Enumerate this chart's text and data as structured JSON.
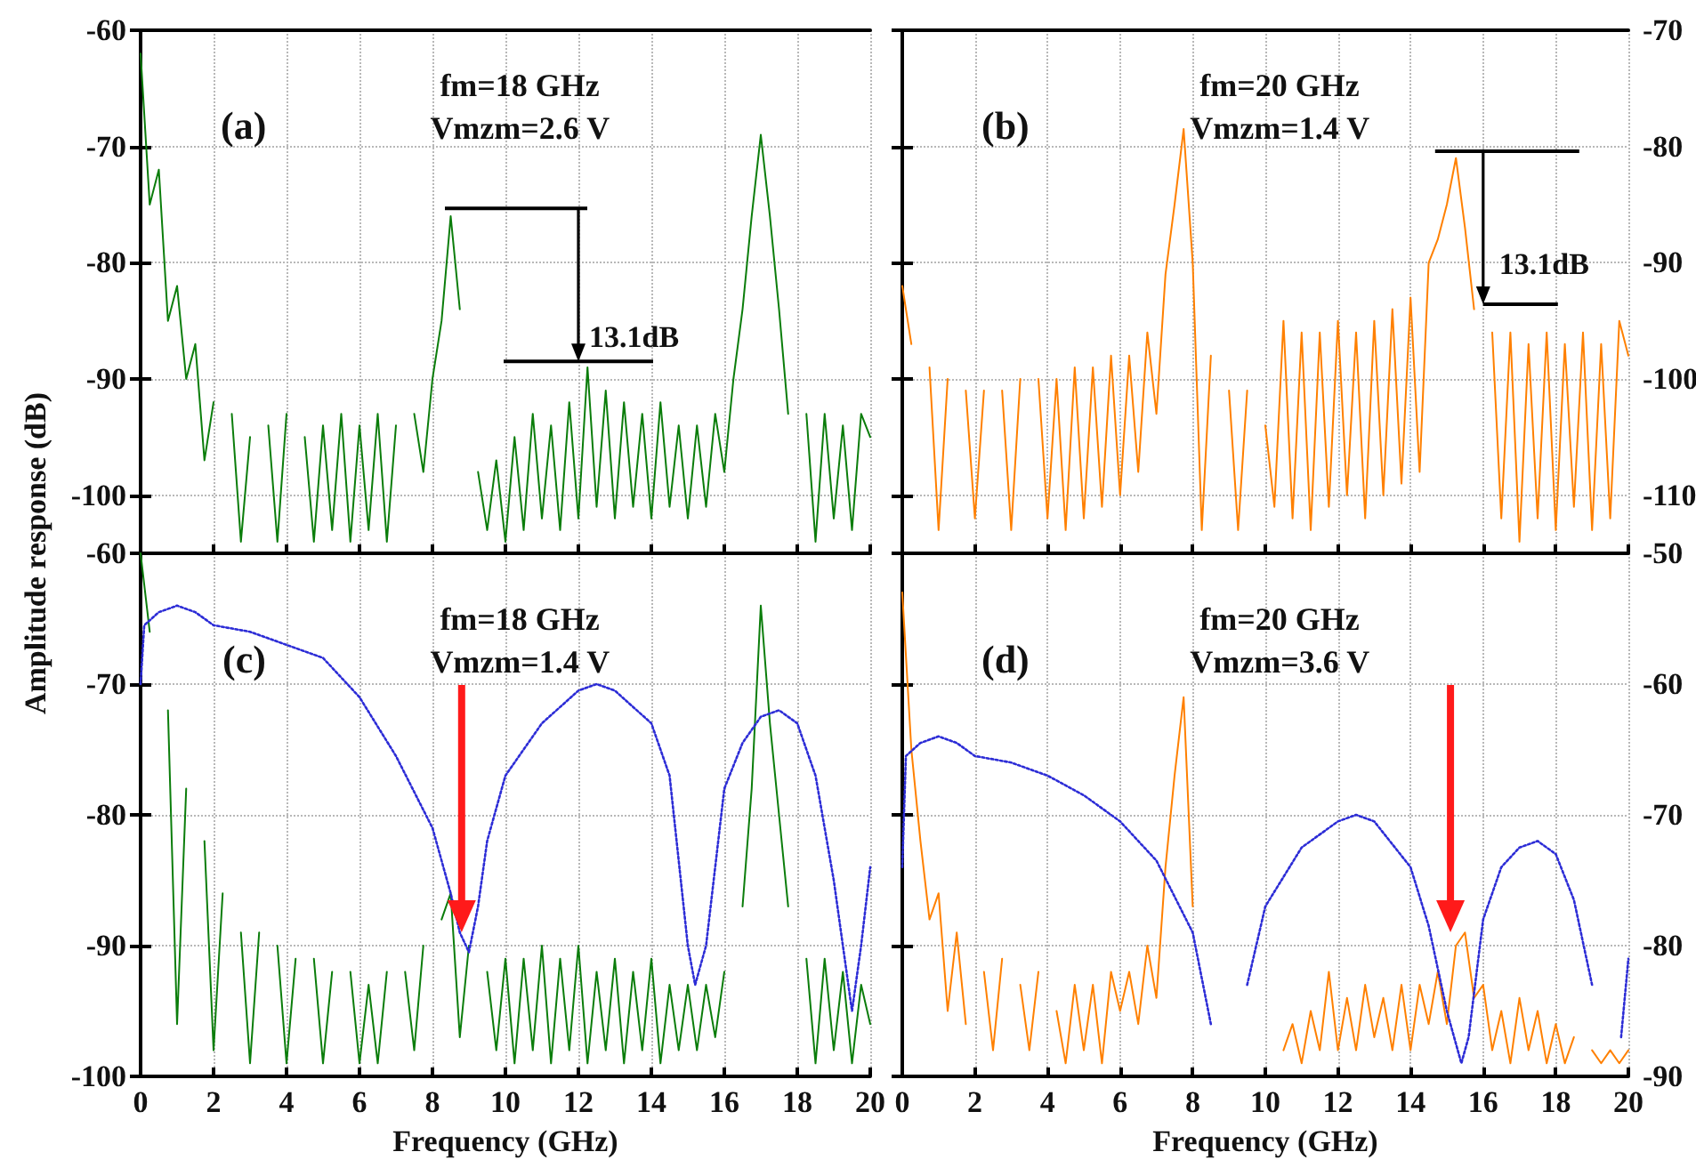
{
  "chart_data": [
    {
      "type": "line",
      "ylabel": "Amplitude response (dB)",
      "annotations": [
        "(a)",
        "fm=18 GHz",
        "Vmzm=2.6 V",
        "13.1dB"
      ],
      "xlim": [
        0,
        20
      ],
      "xticks": [
        0,
        2,
        4,
        6,
        8,
        10,
        12,
        14,
        16,
        18,
        20
      ],
      "ylim": [
        -105,
        -60
      ],
      "yticks": [
        -100,
        -90,
        -80,
        -70,
        -60
      ],
      "grid": true,
      "marker": "none",
      "line_style": "solid",
      "tick_labels": "y",
      "x": [
        0,
        0.25,
        0.5,
        0.75,
        1,
        1.25,
        1.5,
        1.75,
        2,
        2.25,
        2.5,
        2.75,
        3,
        3.25,
        3.5,
        3.75,
        4,
        4.25,
        4.5,
        4.75,
        5,
        5.25,
        5.5,
        5.75,
        6,
        6.25,
        6.5,
        6.75,
        7,
        7.25,
        7.5,
        7.75,
        8,
        8.25,
        8.5,
        8.75,
        9,
        9.25,
        9.5,
        9.75,
        10,
        10.25,
        10.5,
        10.75,
        11,
        11.25,
        11.5,
        11.75,
        12,
        12.25,
        12.5,
        12.75,
        13,
        13.25,
        13.5,
        13.75,
        14,
        14.25,
        14.5,
        14.75,
        15,
        15.25,
        15.5,
        15.75,
        16,
        16.25,
        16.5,
        16.75,
        17,
        17.25,
        17.5,
        17.75,
        18,
        18.25,
        18.5,
        18.75,
        19,
        19.25,
        19.5,
        19.75,
        20
      ],
      "series": [
        {
          "color": "#0b7d0b",
          "values": [
            -62,
            -75,
            -72,
            -85,
            -82,
            -90,
            -87,
            -97,
            -92,
            null,
            -93,
            -104,
            -95,
            null,
            -94,
            -104,
            -93,
            null,
            -95,
            -104,
            -94,
            -103,
            -93,
            -104,
            -94,
            -103,
            -93,
            -104,
            -94,
            null,
            -93,
            -98,
            -90,
            -85,
            -76,
            -84,
            null,
            -98,
            -103,
            -97,
            -104,
            -95,
            -103,
            -93,
            -102,
            -94,
            -103,
            -92,
            -102,
            -89,
            -101,
            -91,
            -102,
            -92,
            -101,
            -93,
            -102,
            -92,
            -101,
            -94,
            -102,
            -94,
            -101,
            -93,
            -98,
            -90,
            -84,
            -76,
            -69,
            -76,
            -84,
            -93,
            null,
            -93,
            -104,
            -93,
            -102,
            -94,
            -103,
            -93,
            -95
          ]
        }
      ]
    },
    {
      "type": "line",
      "annotations": [
        "(b)",
        "fm=20 GHz",
        "Vmzm=1.4 V",
        "13.1dB"
      ],
      "xlim": [
        0,
        20
      ],
      "xticks": [
        0,
        2,
        4,
        6,
        8,
        10,
        12,
        14,
        16,
        18,
        20
      ],
      "ylim": [
        -115,
        -70
      ],
      "yticks": [
        -110,
        -100,
        -90,
        -80,
        -70
      ],
      "grid": true,
      "marker": "none",
      "line_style": "solid",
      "tick_labels": "y",
      "x": [
        0,
        0.25,
        0.5,
        0.75,
        1,
        1.25,
        1.5,
        1.75,
        2,
        2.25,
        2.5,
        2.75,
        3,
        3.25,
        3.5,
        3.75,
        4,
        4.25,
        4.5,
        4.75,
        5,
        5.25,
        5.5,
        5.75,
        6,
        6.25,
        6.5,
        6.75,
        7,
        7.25,
        7.5,
        7.75,
        8,
        8.25,
        8.5,
        8.75,
        9,
        9.25,
        9.5,
        9.75,
        10,
        10.25,
        10.5,
        10.75,
        11,
        11.25,
        11.5,
        11.75,
        12,
        12.25,
        12.5,
        12.75,
        13,
        13.25,
        13.5,
        13.75,
        14,
        14.25,
        14.5,
        14.75,
        15,
        15.25,
        15.5,
        15.75,
        16,
        16.25,
        16.5,
        16.75,
        17,
        17.25,
        17.5,
        17.75,
        18,
        18.25,
        18.5,
        18.75,
        19,
        19.25,
        19.5,
        19.75,
        20
      ],
      "series": [
        {
          "color": "#ff8000",
          "values": [
            -92,
            -97,
            null,
            -99,
            -113,
            -100,
            null,
            -101,
            -112,
            -101,
            null,
            -101,
            -113,
            -100,
            null,
            -100,
            -112,
            -100,
            -113,
            -99,
            -112,
            -99,
            -111,
            -98,
            -110,
            -98,
            -108,
            -96,
            -103,
            -91,
            -85,
            -78.5,
            -90,
            -113,
            -98,
            null,
            -101,
            -113,
            -101,
            null,
            -104,
            -111,
            -95,
            -112,
            -96,
            -113,
            -96,
            -111,
            -95,
            -110,
            -96,
            -112,
            -95,
            -110,
            -94,
            -109,
            -93,
            -108,
            -90,
            -88,
            -85,
            -81,
            -87,
            -94,
            null,
            -96,
            -112,
            -96,
            -114,
            -97,
            -112,
            -96,
            -113,
            -97,
            -111,
            -96,
            -113,
            -97,
            -112,
            -95,
            -98
          ]
        }
      ]
    },
    {
      "type": "line",
      "xlabel": "Frequency (GHz)",
      "annotations": [
        "(c)",
        "fm=18 GHz",
        "Vmzm=1.4 V"
      ],
      "xlim": [
        0,
        20
      ],
      "xticks": [
        0,
        2,
        4,
        6,
        8,
        10,
        12,
        14,
        16,
        18,
        20
      ],
      "ylim": [
        -100,
        -60
      ],
      "yticks": [
        -100,
        -90,
        -80,
        -70,
        -60
      ],
      "grid": true,
      "marker": "none",
      "line_style": "solid",
      "x": [
        0,
        0.25,
        0.5,
        0.75,
        1,
        1.25,
        1.5,
        1.75,
        2,
        2.25,
        2.5,
        2.75,
        3,
        3.25,
        3.5,
        3.75,
        4,
        4.25,
        4.5,
        4.75,
        5,
        5.25,
        5.5,
        5.75,
        6,
        6.25,
        6.5,
        6.75,
        7,
        7.25,
        7.5,
        7.75,
        8,
        8.25,
        8.5,
        8.75,
        9,
        9.25,
        9.5,
        9.75,
        10,
        10.25,
        10.5,
        10.75,
        11,
        11.25,
        11.5,
        11.75,
        12,
        12.25,
        12.5,
        12.75,
        13,
        13.25,
        13.5,
        13.75,
        14,
        14.25,
        14.5,
        14.75,
        15,
        15.25,
        15.5,
        15.75,
        16,
        16.25,
        16.5,
        16.75,
        17,
        17.25,
        17.5,
        17.75,
        18,
        18.25,
        18.5,
        18.75,
        19,
        19.25,
        19.5,
        19.75,
        20
      ],
      "series": [
        {
          "color": "#0b7d0b",
          "values": [
            -60,
            -66,
            null,
            -72,
            -96,
            -78,
            null,
            -82,
            -98,
            -86,
            null,
            -89,
            -99,
            -89,
            null,
            -90,
            -99,
            -91,
            null,
            -91,
            -99,
            -92,
            null,
            -92,
            -99,
            -93,
            -99,
            -92,
            null,
            -92,
            -98,
            -90,
            null,
            -88,
            -86,
            -97,
            -90,
            null,
            -92,
            -98,
            -91,
            -99,
            -91,
            -98,
            -90,
            -99,
            -91,
            -98,
            -90,
            -99,
            -92,
            -98,
            -91,
            -99,
            -92,
            -98,
            -91,
            -99,
            -93,
            -98,
            -93,
            -98,
            -93,
            -97,
            -92,
            null,
            -87,
            -78,
            -64,
            -73,
            -80,
            -87,
            null,
            -91,
            -99,
            -91,
            -98,
            -92,
            -99,
            -93,
            -96
          ]
        },
        {
          "color": "#2c2cd6",
          "line_style": "dotted",
          "x": [
            0,
            0.1,
            0.5,
            1,
            1.5,
            2,
            3,
            4,
            5,
            6,
            7,
            8,
            8.5,
            8.75,
            9,
            9.25,
            9.5,
            10,
            11,
            12,
            12.5,
            13,
            14,
            14.5,
            15,
            15.2,
            15.5,
            16,
            16.5,
            17,
            17.5,
            18,
            18.5,
            19,
            19.5,
            19.75,
            20
          ],
          "values": [
            -70,
            -65.5,
            -64.5,
            -64,
            -64.5,
            -65.5,
            -66,
            -67,
            -68,
            -71,
            -75.5,
            -81,
            -86,
            -89,
            -90.5,
            -87,
            -82,
            -77,
            -73,
            -70.5,
            -70,
            -70.5,
            -73,
            -77,
            -90,
            -93,
            -90,
            -78,
            -74.5,
            -72.5,
            -72,
            -73,
            -77,
            -85,
            -95,
            -90,
            -84
          ]
        }
      ]
    },
    {
      "type": "line",
      "xlabel": "Frequency (GHz)",
      "annotations": [
        "(d)",
        "fm=20 GHz",
        "Vmzm=3.6 V"
      ],
      "xlim": [
        0,
        20
      ],
      "xticks": [
        0,
        2,
        4,
        6,
        8,
        10,
        12,
        14,
        16,
        18,
        20
      ],
      "ylim": [
        -90,
        -50
      ],
      "yticks": [
        -90,
        -80,
        -70,
        -60,
        -50
      ],
      "grid": true,
      "marker": "none",
      "line_style": "solid",
      "x": [
        0,
        0.25,
        0.5,
        0.75,
        1,
        1.25,
        1.5,
        1.75,
        2,
        2.25,
        2.5,
        2.75,
        3,
        3.25,
        3.5,
        3.75,
        4,
        4.25,
        4.5,
        4.75,
        5,
        5.25,
        5.5,
        5.75,
        6,
        6.25,
        6.5,
        6.75,
        7,
        7.25,
        7.5,
        7.75,
        8,
        8.25,
        8.5,
        8.75,
        9,
        9.25,
        9.5,
        9.75,
        10,
        10.25,
        10.5,
        10.75,
        11,
        11.25,
        11.5,
        11.75,
        12,
        12.25,
        12.5,
        12.75,
        13,
        13.25,
        13.5,
        13.75,
        14,
        14.25,
        14.5,
        14.75,
        15,
        15.25,
        15.5,
        15.75,
        16,
        16.25,
        16.5,
        16.75,
        17,
        17.25,
        17.5,
        17.75,
        18,
        18.25,
        18.5,
        18.75,
        19,
        19.25,
        19.5,
        19.75,
        20
      ],
      "series": [
        {
          "color": "#ff8000",
          "values": [
            -53,
            -65,
            -72,
            -78,
            -76,
            -85,
            -79,
            -86,
            null,
            -82,
            -88,
            -81,
            null,
            -83,
            -88,
            -82,
            null,
            -85,
            -89,
            -83,
            -88,
            -83,
            -89,
            -82,
            -85,
            -82,
            -86,
            -80,
            -84,
            -74,
            -67,
            -61,
            -77,
            null,
            null,
            null,
            null,
            null,
            null,
            null,
            null,
            null,
            -88,
            -86,
            -89,
            -85,
            -88,
            -82,
            -88,
            -84,
            -88,
            -83,
            -87,
            -84,
            -88,
            -83,
            -88,
            -83,
            -86,
            -82,
            -86,
            -80,
            -79,
            -84,
            -83,
            -88,
            -85,
            -89,
            -84,
            -88,
            -85,
            -89,
            -86,
            -89,
            -87,
            null,
            -88,
            -89,
            -88,
            -89,
            -88
          ]
        },
        {
          "color": "#2c2cd6",
          "line_style": "dotted",
          "x": [
            0,
            0.1,
            0.5,
            1,
            1.5,
            2,
            3,
            4,
            5,
            6,
            7,
            8,
            8.5,
            8.7,
            9.1,
            9.5,
            10,
            11,
            12,
            12.5,
            13,
            14,
            14.5,
            15,
            15.4,
            15.6,
            16,
            16.5,
            17,
            17.5,
            18,
            18.5,
            19,
            19.4,
            19.8,
            20
          ],
          "values": [
            -74,
            -65.5,
            -64.5,
            -64,
            -64.5,
            -65.5,
            -66,
            -67,
            -68.5,
            -70.5,
            -73.5,
            -79,
            -86,
            null,
            null,
            -83,
            -77,
            -72.5,
            -70.5,
            -70,
            -70.5,
            -74,
            -78.5,
            -85,
            -89,
            -87,
            -78,
            -74,
            -72.5,
            -72,
            -73,
            -76.5,
            -83,
            null,
            -87,
            -81
          ]
        }
      ]
    }
  ]
}
